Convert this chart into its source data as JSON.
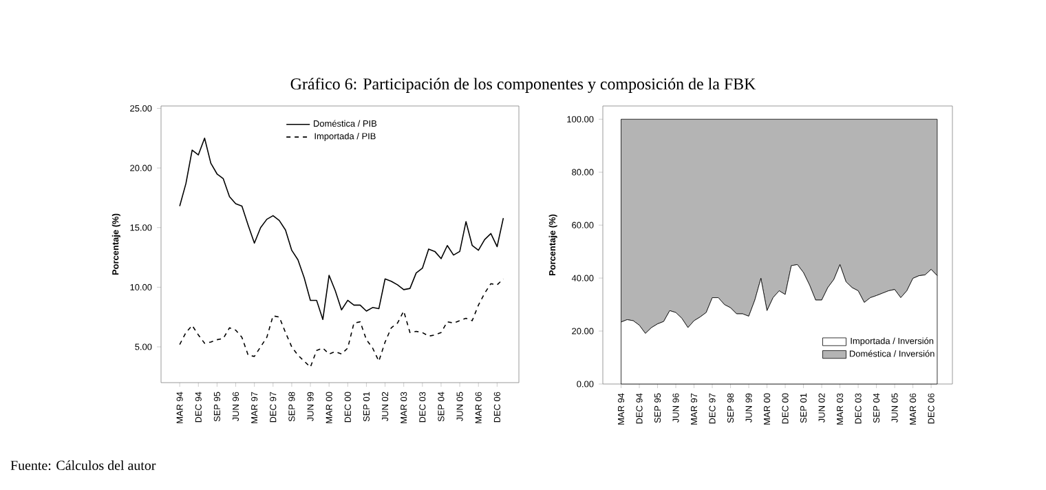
{
  "chart_data": [
    {
      "type": "line",
      "title": "Gráfico 6: Participación de los componentes y composición de la FBK",
      "ylabel": "Porcentaje (%)",
      "annotations": [
        "Fuente: Cálculos del autor"
      ],
      "categories": [
        "MAR 94",
        null,
        null,
        "DEC 94",
        null,
        null,
        "SEP 95",
        null,
        null,
        "JUN 96",
        null,
        null,
        "MAR 97",
        null,
        null,
        "DEC 97",
        null,
        null,
        "SEP 98",
        null,
        null,
        "JUN 99",
        null,
        null,
        "MAR 00",
        null,
        null,
        "DEC 00",
        null,
        null,
        "SEP 01",
        null,
        null,
        "JUN 02",
        null,
        null,
        "MAR 03",
        null,
        null,
        "DEC 03",
        null,
        null,
        "SEP 04",
        null,
        null,
        "JUN 05",
        null,
        null,
        "MAR 06",
        null,
        null,
        "DEC 06",
        null
      ],
      "series": [
        {
          "name": "Doméstica / PIB",
          "color": "#000000",
          "line_style": "solid",
          "values": [
            16.8,
            18.7,
            21.5,
            21.1,
            22.5,
            20.4,
            19.5,
            19.1,
            17.6,
            17.0,
            16.8,
            15.2,
            13.7,
            15.0,
            15.7,
            16.0,
            15.6,
            14.8,
            13.1,
            12.3,
            10.8,
            8.9,
            8.9,
            7.3,
            11.0,
            9.7,
            8.1,
            8.9,
            8.5,
            8.5,
            8.0,
            8.3,
            8.2,
            10.7,
            10.5,
            10.2,
            9.8,
            9.9,
            11.2,
            11.6,
            13.2,
            13.0,
            12.4,
            13.5,
            12.7,
            13.0,
            15.5,
            13.5,
            13.1,
            14.0,
            14.5,
            13.4,
            15.8
          ]
        },
        {
          "name": "Importada / PIB",
          "color": "#000000",
          "line_style": "dashed",
          "values": [
            5.2,
            6.2,
            6.8,
            6.0,
            5.3,
            5.4,
            5.6,
            5.7,
            6.6,
            6.4,
            5.8,
            4.3,
            4.2,
            5.0,
            5.8,
            7.6,
            7.5,
            6.2,
            5.0,
            4.3,
            3.8,
            3.3,
            4.7,
            4.9,
            4.4,
            4.6,
            4.4,
            4.9,
            7.0,
            7.1,
            5.6,
            4.9,
            3.8,
            5.4,
            6.6,
            7.0,
            8.0,
            6.2,
            6.3,
            6.2,
            5.9,
            6.0,
            6.2,
            7.1,
            7.0,
            7.2,
            7.4,
            7.2,
            8.5,
            9.5,
            10.3,
            10.2,
            10.7
          ]
        }
      ],
      "ylim": [
        2,
        25.2
      ],
      "yticks": [
        {
          "value": 5,
          "label": "5.00"
        },
        {
          "value": 10,
          "label": "10.00"
        },
        {
          "value": 15,
          "label": "15.00"
        },
        {
          "value": 20,
          "label": "20.00"
        },
        {
          "value": 25,
          "label": "25.00"
        }
      ],
      "legend": "top"
    },
    {
      "type": "area",
      "ylabel": "Porcentaje (%)",
      "stacked": true,
      "categories": [
        "MAR 94",
        null,
        null,
        "DEC 94",
        null,
        null,
        "SEP 95",
        null,
        null,
        "JUN 96",
        null,
        null,
        "MAR 97",
        null,
        null,
        "DEC 97",
        null,
        null,
        "SEP 98",
        null,
        null,
        "JUN 99",
        null,
        null,
        "MAR 00",
        null,
        null,
        "DEC 00",
        null,
        null,
        "SEP 01",
        null,
        null,
        "JUN 02",
        null,
        null,
        "MAR 03",
        null,
        null,
        "DEC 03",
        null,
        null,
        "SEP 04",
        null,
        null,
        "JUN 05",
        null,
        null,
        "MAR 06",
        null,
        null,
        "DEC 06",
        null
      ],
      "series": [
        {
          "name": "Importada / Inversión",
          "color": "#ffffff",
          "values": [
            23.4,
            24.3,
            23.9,
            22.2,
            19.1,
            21.3,
            22.7,
            23.6,
            27.7,
            27.0,
            24.8,
            21.3,
            23.9,
            25.3,
            27.0,
            32.6,
            32.6,
            30.0,
            28.8,
            26.5,
            26.5,
            25.6,
            31.7,
            39.9,
            27.7,
            32.6,
            35.2,
            33.8,
            44.7,
            45.1,
            42.1,
            37.4,
            31.7,
            31.7,
            36.4,
            39.5,
            45.1,
            38.6,
            36.4,
            35.2,
            30.8,
            32.6,
            33.4,
            34.3,
            35.2,
            35.7,
            32.6,
            35.2,
            39.9,
            40.9,
            41.2,
            43.3,
            40.9
          ]
        },
        {
          "name": "Doméstica / Inversión",
          "color": "#b4b4b4",
          "values": [
            76.6,
            75.7,
            76.1,
            77.8,
            80.9,
            78.7,
            77.3,
            76.4,
            72.3,
            73.0,
            75.2,
            78.7,
            76.1,
            74.7,
            73.0,
            67.4,
            67.4,
            70.0,
            71.2,
            73.5,
            73.5,
            74.4,
            68.3,
            60.1,
            72.3,
            67.4,
            64.8,
            66.2,
            55.3,
            54.9,
            57.9,
            62.6,
            68.3,
            68.3,
            63.6,
            60.5,
            54.9,
            61.4,
            63.6,
            64.8,
            69.2,
            67.4,
            66.6,
            65.7,
            64.8,
            64.3,
            67.4,
            64.8,
            60.1,
            59.1,
            58.8,
            56.7,
            59.1
          ]
        }
      ],
      "ylim": [
        0,
        105
      ],
      "yticks": [
        {
          "value": 0,
          "label": "0.00"
        },
        {
          "value": 20,
          "label": "20.00"
        },
        {
          "value": 40,
          "label": "40.00"
        },
        {
          "value": 60,
          "label": "60.00"
        },
        {
          "value": 80,
          "label": "80.00"
        },
        {
          "value": 100,
          "label": "100.00"
        }
      ],
      "legend": "bottom right"
    }
  ]
}
